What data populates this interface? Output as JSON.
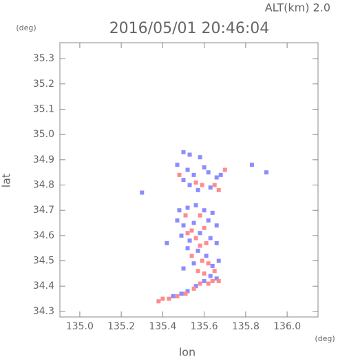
{
  "chart_data": {
    "type": "scatter",
    "title": "2016/05/01 20:46:04",
    "subtitle": "ALT(km) 2.0",
    "x_label": "lon",
    "y_label": "lat",
    "x_unit": "(deg)",
    "y_unit": "(deg)",
    "xlim": [
      134.904,
      136.149
    ],
    "ylim": [
      34.278,
      35.363
    ],
    "xticks": [
      {
        "value": 135,
        "label": "135.0"
      },
      135.2,
      135.4,
      135.6,
      135.8,
      {
        "value": 136,
        "label": "136.0"
      }
    ],
    "yticks": [
      34.3,
      34.4,
      34.5,
      34.6,
      34.7,
      34.8,
      34.9,
      {
        "value": 35,
        "label": "35.0"
      },
      35.1,
      35.2,
      35.3
    ],
    "series": [
      {
        "color": "#8c8cff",
        "x": [
          135.5,
          135.53,
          135.58,
          135.47,
          135.52,
          135.55,
          135.5,
          135.53,
          135.57,
          135.62,
          135.66,
          135.68,
          135.63,
          135.6,
          135.48,
          135.52,
          135.56,
          135.6,
          135.64,
          135.47,
          135.5,
          135.55,
          135.62,
          135.66,
          135.49,
          135.53,
          135.58,
          135.63,
          135.66,
          135.52,
          135.57,
          135.61,
          135.55,
          135.64,
          135.67,
          135.5,
          135.6,
          135.56,
          135.52,
          135.49,
          135.45,
          135.63,
          135.66,
          135.3,
          135.9,
          135.83,
          135.42
        ],
        "values": [
          34.93,
          34.92,
          34.91,
          34.88,
          34.86,
          34.84,
          34.82,
          34.8,
          34.78,
          34.85,
          34.83,
          34.84,
          34.79,
          34.87,
          34.7,
          34.71,
          34.72,
          34.7,
          34.69,
          34.66,
          34.64,
          34.65,
          34.66,
          34.64,
          34.6,
          34.58,
          34.61,
          34.59,
          34.57,
          34.55,
          34.54,
          34.52,
          34.49,
          34.48,
          34.5,
          34.47,
          34.42,
          34.4,
          34.38,
          34.37,
          34.36,
          34.44,
          34.43,
          34.77,
          34.85,
          34.88,
          34.57
        ]
      },
      {
        "color": "#ff8c8c",
        "x": [
          135.48,
          135.56,
          135.59,
          135.65,
          135.7,
          135.67,
          135.51,
          135.58,
          135.54,
          135.6,
          135.56,
          135.61,
          135.58,
          135.54,
          135.59,
          135.62,
          135.57,
          135.6,
          135.65,
          135.52,
          135.62,
          135.58,
          135.55,
          135.64,
          135.47,
          135.43,
          135.4,
          135.38,
          135.51,
          135.67
        ],
        "values": [
          34.84,
          34.81,
          34.8,
          34.8,
          34.86,
          34.78,
          34.68,
          34.68,
          34.62,
          34.63,
          34.59,
          34.57,
          34.56,
          34.52,
          34.5,
          34.49,
          34.46,
          34.45,
          34.46,
          34.61,
          34.41,
          34.41,
          34.39,
          34.42,
          34.36,
          34.35,
          34.35,
          34.34,
          34.37,
          34.42
        ]
      }
    ]
  }
}
